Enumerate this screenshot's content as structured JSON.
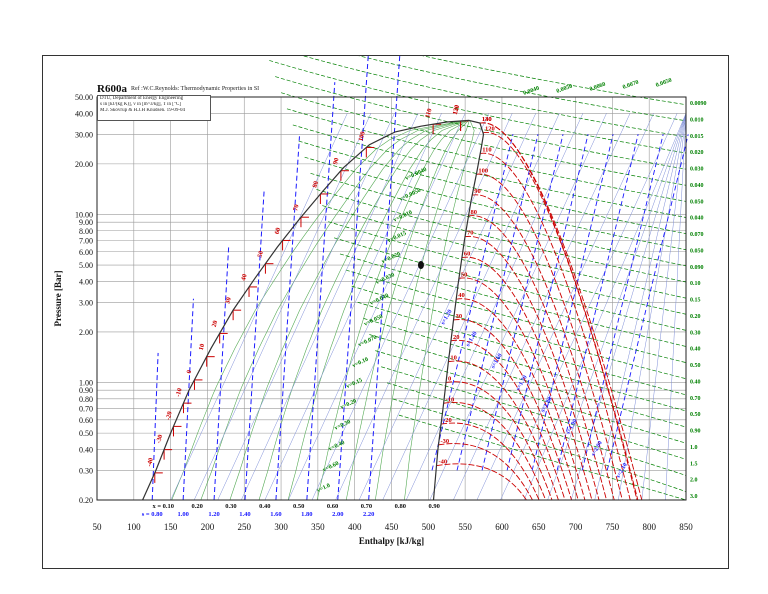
{
  "chart_data": {
    "type": "line",
    "title": "R600a",
    "subtitle": "Ref :W.C.Reynolds: Thermodynamic Properties in SI",
    "info_lines": [
      "DTU, Department of Energy Engineering",
      "s in [kJ/(kg K)], v in [m^3/kg], T in [°C]",
      "M.J. Skovrup & H.J.H Knudsen. 19-09-04"
    ],
    "xlabel": "Enthalpy [kJ/kg]",
    "ylabel": "Pressure [Bar]",
    "x_scale": "linear",
    "y_scale": "log",
    "xlim": [
      50,
      850
    ],
    "ylim": [
      0.2,
      50
    ],
    "grid": true,
    "x_ticks": [
      "50",
      "100",
      "150",
      "200",
      "250",
      "300",
      "350",
      "400",
      "450",
      "500",
      "550",
      "600",
      "650",
      "700",
      "750",
      "800",
      "850"
    ],
    "y_ticks": [
      {
        "v": 50,
        "label": "50.00"
      },
      {
        "v": 40,
        "label": "40.00"
      },
      {
        "v": 30,
        "label": "30.00"
      },
      {
        "v": 20,
        "label": "20.00"
      },
      {
        "v": 10,
        "label": "10.00"
      },
      {
        "v": 9,
        "label": "9.00"
      },
      {
        "v": 8,
        "label": "8.00"
      },
      {
        "v": 7,
        "label": "7.00"
      },
      {
        "v": 6,
        "label": "6.00"
      },
      {
        "v": 5,
        "label": "5.00"
      },
      {
        "v": 4,
        "label": "4.00"
      },
      {
        "v": 3,
        "label": "3.00"
      },
      {
        "v": 2,
        "label": "2.00"
      },
      {
        "v": 1,
        "label": "1.00"
      },
      {
        "v": 0.9,
        "label": "0.90"
      },
      {
        "v": 0.8,
        "label": "0.80"
      },
      {
        "v": 0.7,
        "label": "0.70"
      },
      {
        "v": 0.6,
        "label": "0.60"
      },
      {
        "v": 0.5,
        "label": "0.50"
      },
      {
        "v": 0.4,
        "label": "0.40"
      },
      {
        "v": 0.3,
        "label": "0.30"
      },
      {
        "v": 0.2,
        "label": "0.20"
      }
    ],
    "saturated_liquid": [
      [
        112,
        0.2
      ],
      [
        130,
        0.3
      ],
      [
        150,
        0.5
      ],
      [
        175,
        0.9
      ],
      [
        205,
        1.6
      ],
      [
        235,
        2.7
      ],
      [
        265,
        4.2
      ],
      [
        295,
        6.4
      ],
      [
        325,
        9.4
      ],
      [
        355,
        13.5
      ],
      [
        385,
        19
      ],
      [
        420,
        26
      ],
      [
        455,
        31
      ],
      [
        490,
        33.5
      ],
      [
        525,
        35.5
      ],
      [
        555,
        36.3
      ]
    ],
    "saturated_vapor": [
      [
        555,
        36.3
      ],
      [
        570,
        35
      ],
      [
        575,
        30
      ],
      [
        572,
        25
      ],
      [
        566,
        18
      ],
      [
        558,
        12
      ],
      [
        549,
        7
      ],
      [
        541,
        4
      ],
      [
        534,
        2.3
      ],
      [
        527,
        1.3
      ],
      [
        520,
        0.7
      ],
      [
        513,
        0.4
      ],
      [
        507,
        0.2
      ]
    ],
    "critical_point": [
      555,
      36.3
    ],
    "quality_labels": [
      "x = 0.10",
      "0.20",
      "0.30",
      "0.40",
      "0.50",
      "0.60",
      "0.70",
      "0.80",
      "0.90"
    ],
    "entropy_labels": [
      "s = 0.80",
      "1.00",
      "1.20",
      "1.40",
      "1.60",
      "1.80",
      "2.00",
      "2.20"
    ],
    "temperature_labels": [
      "-40",
      "-30",
      "-20",
      "-10",
      "0",
      "10",
      "20",
      "30",
      "40",
      "50",
      "60",
      "70",
      "80",
      "90",
      "100",
      "110",
      "120",
      "130"
    ],
    "vapor_temperature_labels": [
      "-40",
      "-30",
      "-20",
      "-10",
      "0",
      "10",
      "20",
      "30",
      "40",
      "50",
      "60",
      "70",
      "80",
      "90",
      "100",
      "110",
      "120",
      "130",
      "140"
    ],
    "right_axis_volume_labels": [
      "0.0090",
      "0.010",
      "0.015",
      "0.020",
      "0.030",
      "0.040",
      "0.050",
      "0.040",
      "0.070",
      "0.050",
      "0.090",
      "0.10",
      "0.15",
      "0.20",
      "0.30",
      "0.40",
      "0.50",
      "0.40",
      "0.70",
      "0.50",
      "0.90",
      "1.0",
      "1.5",
      "2.0",
      "3.0"
    ],
    "top_volume_labels": [
      "0.0040",
      "0.0050",
      "0.0060",
      "0.0070",
      "0.0050"
    ],
    "dome_volume_labels": [
      "v=0.0040",
      "v=0.0050",
      "v=0.010",
      "v=0.015",
      "v=0.020",
      "v=0.030",
      "v=0.040",
      "v=0.050",
      "v=0.070",
      "v=0.10",
      "v=0.15",
      "v=0.20",
      "v=0.30",
      "v=0.40",
      "v=0.60",
      "v=1.0"
    ],
    "vapor_entropy_labels": [
      "s=1.20",
      "s=1.40",
      "s=1.60",
      "s=1.70",
      "s=1.80",
      "s=1.90",
      "s=2.00",
      "s=2.10"
    ],
    "colors": {
      "grid": "#9a9a9a",
      "saturation": "#333333",
      "isotherm": "#cc0000",
      "isentrope": "#1a1aff",
      "isochore": "#008000",
      "quality": "#55aa55",
      "isentrope_fine": "#7f8fd8"
    }
  }
}
